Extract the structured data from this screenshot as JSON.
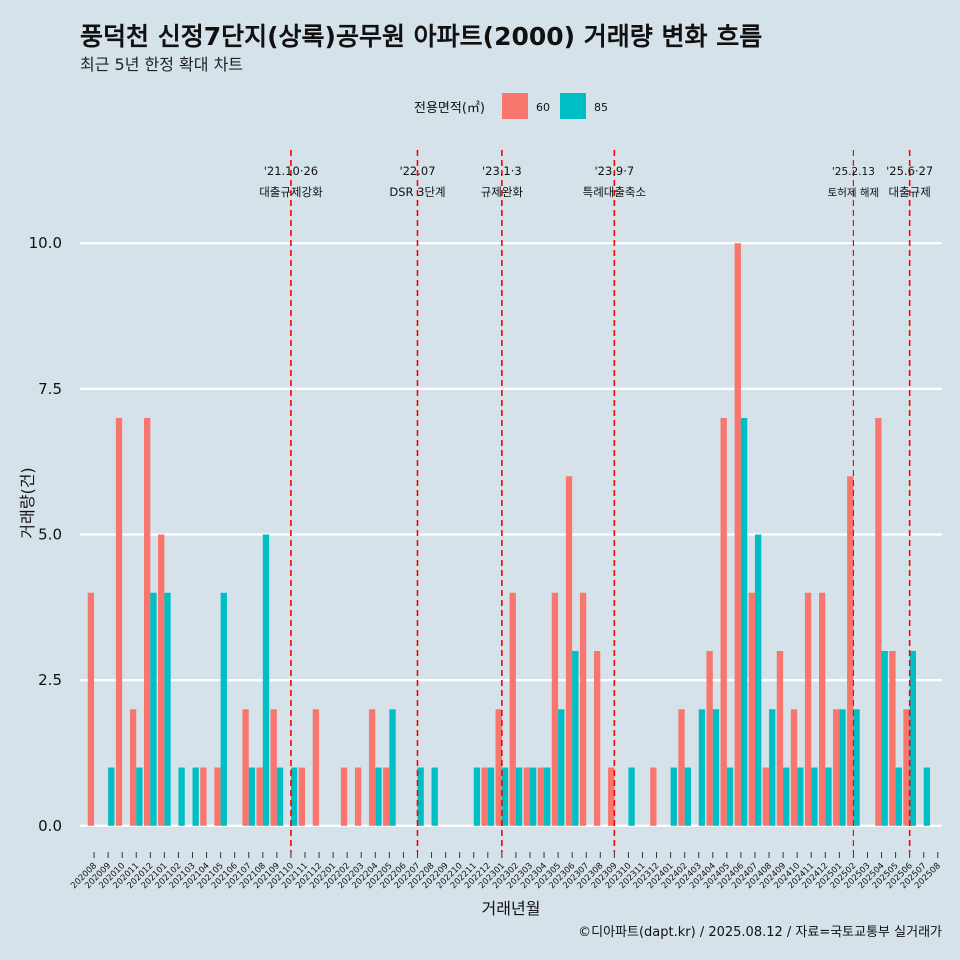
{
  "chart_data": {
    "type": "bar",
    "title": "풍덕천 신정7단지(상록)공무원 아파트(2000) 거래량 변화 흐름",
    "subtitle": "최근 5년 한정 확대 차트",
    "xlabel": "거래년월",
    "ylabel": "거래량(건)",
    "caption": "©디아파트(dapt.kr) / 2025.08.12 / 자료=국토교통부 실거래가",
    "legend_title": "전용면적(㎡)",
    "legend_position": "top",
    "ylim": [
      -0.45,
      11.6
    ],
    "yticks": [
      0,
      2.5,
      5,
      7.5,
      10
    ],
    "ytick_labels": [
      "0.0",
      "2.5",
      "5.0",
      "7.5",
      "10.0"
    ],
    "categories": [
      "202008",
      "202009",
      "202010",
      "202011",
      "202012",
      "202101",
      "202102",
      "202103",
      "202104",
      "202105",
      "202106",
      "202107",
      "202108",
      "202109",
      "202110",
      "202111",
      "202112",
      "202201",
      "202202",
      "202203",
      "202204",
      "202205",
      "202206",
      "202207",
      "202208",
      "202209",
      "202210",
      "202211",
      "202212",
      "202301",
      "202302",
      "202303",
      "202304",
      "202305",
      "202306",
      "202307",
      "202308",
      "202309",
      "202310",
      "202311",
      "202312",
      "202401",
      "202402",
      "202403",
      "202404",
      "202405",
      "202406",
      "202407",
      "202408",
      "202409",
      "202410",
      "202411",
      "202412",
      "202501",
      "202502",
      "202503",
      "202504",
      "202505",
      "202506",
      "202507",
      "202508"
    ],
    "series": [
      {
        "name": "60",
        "color": "#f8766d",
        "values": [
          4,
          0,
          7,
          2,
          7,
          5,
          0,
          0,
          1,
          1,
          0,
          2,
          1,
          2,
          0,
          1,
          2,
          0,
          1,
          1,
          2,
          1,
          0,
          0,
          0,
          0,
          0,
          0,
          1,
          2,
          4,
          1,
          1,
          4,
          6,
          4,
          3,
          1,
          0,
          0,
          1,
          0,
          2,
          0,
          3,
          7,
          10,
          4,
          1,
          3,
          2,
          4,
          4,
          2,
          6,
          0,
          7,
          3,
          2,
          0,
          0
        ]
      },
      {
        "name": "85",
        "color": "#00bfc4",
        "values": [
          0,
          1,
          0,
          1,
          4,
          4,
          1,
          1,
          0,
          4,
          0,
          1,
          5,
          1,
          1,
          0,
          0,
          0,
          0,
          0,
          1,
          2,
          0,
          1,
          1,
          0,
          0,
          1,
          1,
          1,
          1,
          1,
          1,
          2,
          3,
          0,
          0,
          0,
          1,
          0,
          0,
          1,
          1,
          2,
          2,
          1,
          7,
          5,
          2,
          1,
          1,
          1,
          1,
          2,
          2,
          0,
          3,
          1,
          3,
          1,
          0
        ]
      }
    ],
    "annotations": [
      {
        "date": "'21.10·26",
        "label": "대출규제강화",
        "at": "202110"
      },
      {
        "date": "'22.07",
        "label": "DSR 3단계",
        "at": "202207"
      },
      {
        "date": "'23.1·3",
        "label": "규제완화",
        "at": "202301"
      },
      {
        "date": "'23.9·7",
        "label": "특례대출축소",
        "at": "202309"
      },
      {
        "date": "'25.2.13",
        "label": "토허제 해제",
        "at": "202502",
        "small": true
      },
      {
        "date": "'25.6·27",
        "label": "대출규제",
        "at": "202506"
      }
    ]
  }
}
